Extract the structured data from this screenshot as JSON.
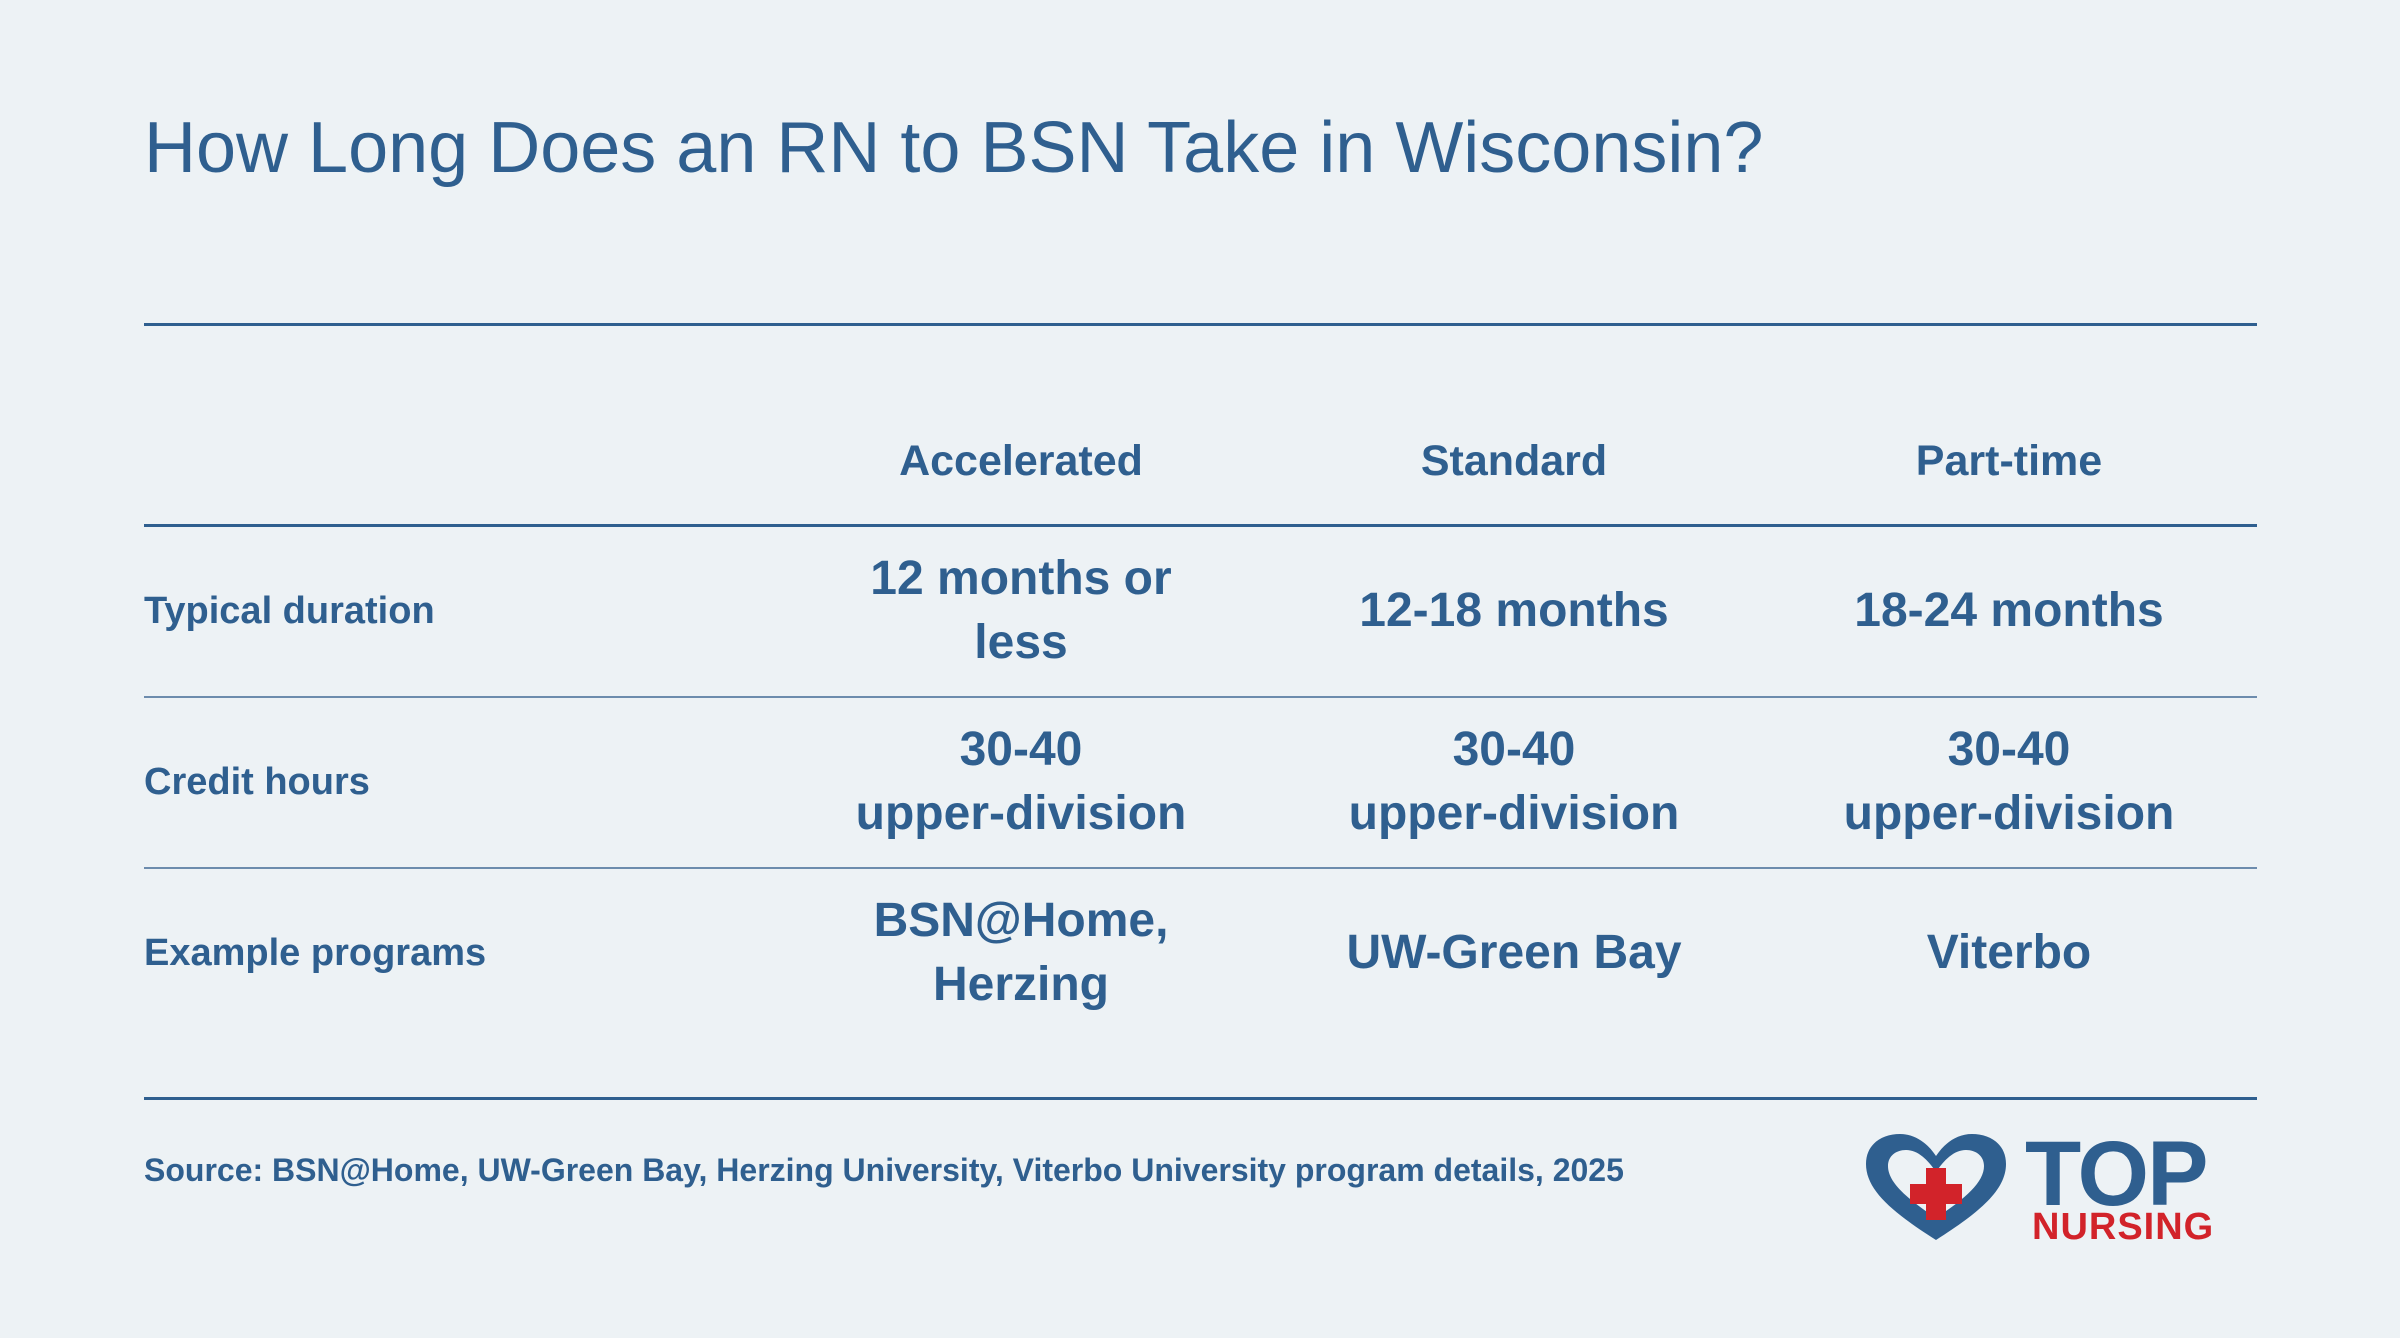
{
  "title": "How Long Does an RN to BSN Take in Wisconsin?",
  "table": {
    "columns": [
      "Accelerated",
      "Standard",
      "Part-time"
    ],
    "rows": [
      {
        "label": "Typical duration",
        "cells": [
          [
            "12 months or",
            "less"
          ],
          [
            "12-18 months"
          ],
          [
            "18-24 months"
          ]
        ]
      },
      {
        "label": "Credit hours",
        "cells": [
          [
            "30-40",
            "upper-division"
          ],
          [
            "30-40",
            "upper-division"
          ],
          [
            "30-40",
            "upper-division"
          ]
        ]
      },
      {
        "label": "Example programs",
        "cells": [
          [
            "BSN@Home,",
            "Herzing"
          ],
          [
            "UW-Green Bay"
          ],
          [
            "Viterbo"
          ]
        ]
      }
    ]
  },
  "source": "Source: BSN@Home, UW-Green Bay, Herzing University, Viterbo University program details, 2025",
  "logo": {
    "top": "TOP",
    "nursing": "NURSING"
  }
}
